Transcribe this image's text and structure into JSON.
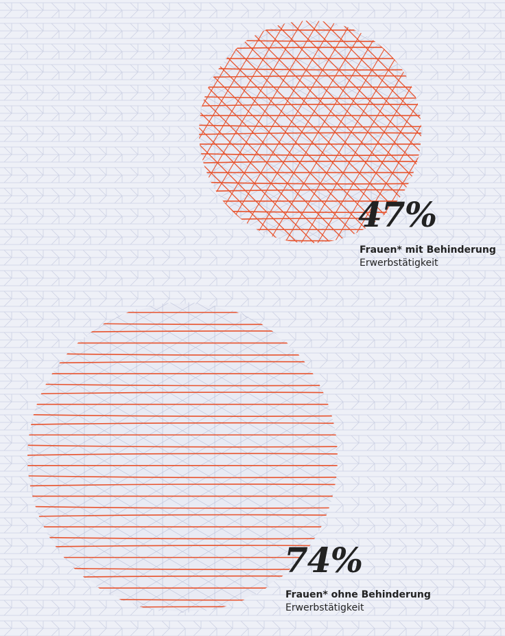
{
  "chart_data": {
    "type": "bubble",
    "title": "",
    "series": [
      {
        "category": "Frauen* mit Behinderung",
        "metric": "Erwerbstätigkeit",
        "value": 47,
        "label": "47%"
      },
      {
        "category": "Frauen* ohne Behinderung",
        "metric": "Erwerbstätigkeit",
        "value": 74,
        "label": "74%"
      }
    ],
    "unit": "%"
  },
  "colors": {
    "background": "#eef0f7",
    "texture_line": "#c6cbe0",
    "accent": "#e8522c",
    "text": "#222222"
  }
}
